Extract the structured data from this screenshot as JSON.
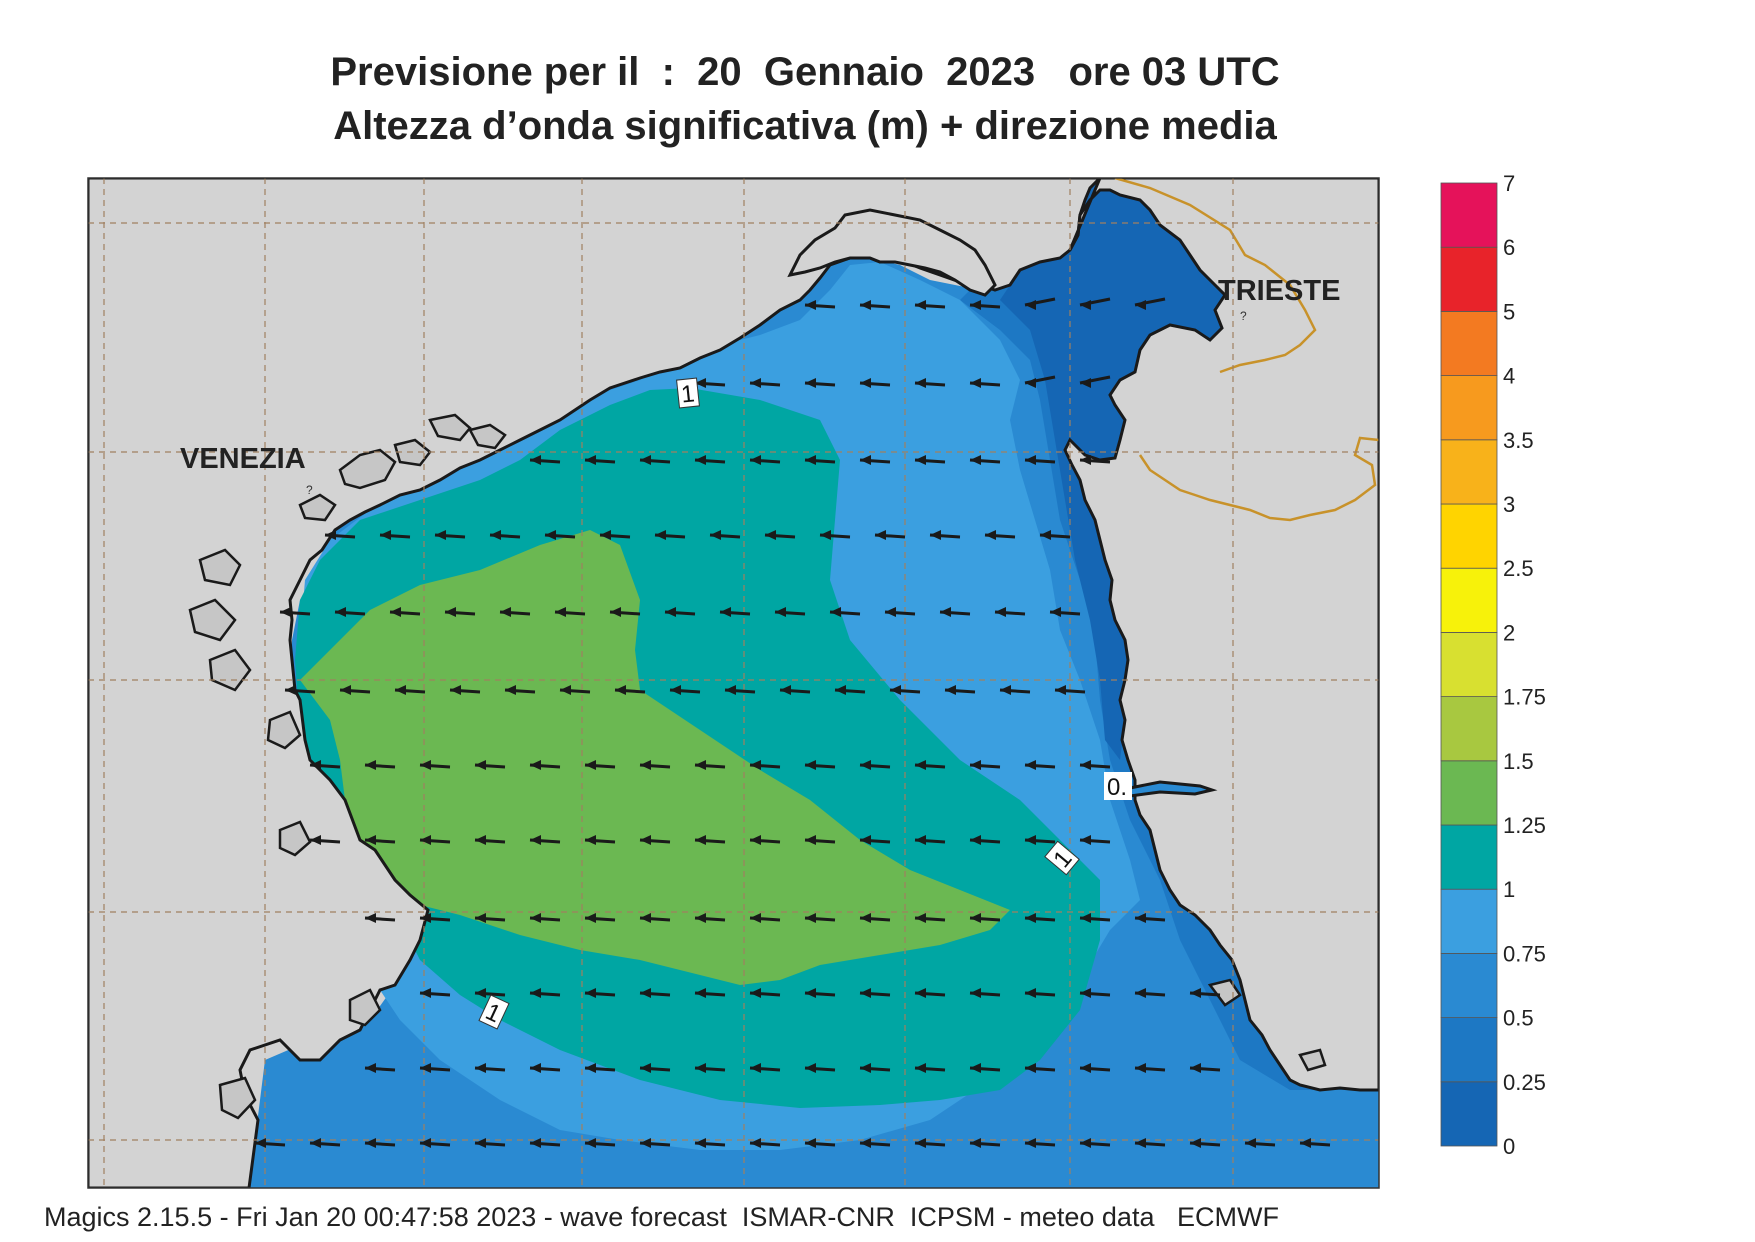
{
  "title_line1": "Previsione per il  :  20  Gennaio  2023   ore 03 UTC",
  "title_line2": "Altezza d’onda significativa (m) + direzione media",
  "footer": "Magics 2.15.5 - Fri Jan 20 00:47:58 2023 - wave forecast  ISMAR-CNR  ICPSM - meteo data   ECMWF",
  "cities": {
    "venezia": "VENEZIA",
    "trieste": "TRIESTE"
  },
  "contour_labels": {
    "label_1_north": "1",
    "label_0": "0.",
    "label_1_east": "1",
    "label_1_south": "1"
  },
  "legend": {
    "labels": [
      "0",
      "0.25",
      "0.5",
      "0.75",
      "1",
      "1.25",
      "1.5",
      "1.75",
      "2",
      "2.5",
      "3",
      "3.5",
      "4",
      "5",
      "6",
      "7"
    ],
    "colors": [
      "#1566b4",
      "#1d78c4",
      "#2a8ad2",
      "#3b9fe0",
      "#00a6a3",
      "#6bb852",
      "#a8c840",
      "#d8e030",
      "#f7f20a",
      "#ffd400",
      "#f8b21a",
      "#f79a1e",
      "#f37a21",
      "#e8232a",
      "#e5125a"
    ]
  },
  "colors": {
    "land": "#d3d3d3",
    "coastline": "#1a1a1a",
    "border": "#c8922a",
    "arrow": "#1a1a1a"
  },
  "wave_direction": "west"
}
